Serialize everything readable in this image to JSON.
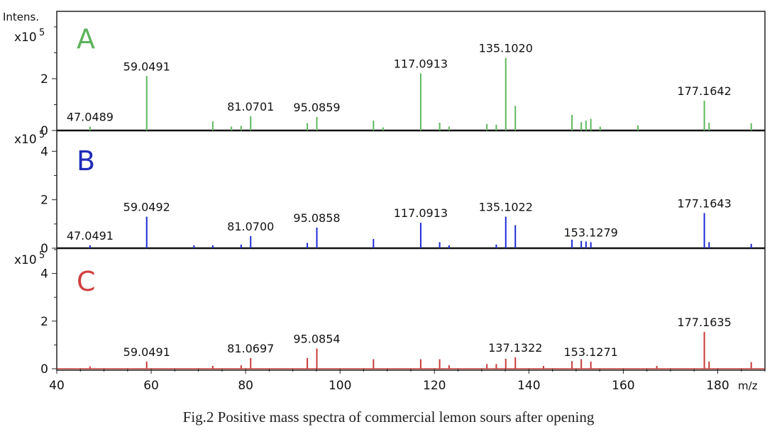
{
  "caption": "Fig.2 Positive mass spectra of commercial lemon sours after opening",
  "y_axis_label": "Intens.",
  "x_axis_unit": "m/z",
  "chart_data": [
    {
      "type": "line",
      "panel": "A",
      "color": "#5cb85c",
      "label_color": "#5db35d",
      "scale_label": "x10",
      "scale_exponent": "5",
      "xlim": [
        40,
        190
      ],
      "ylim": [
        0,
        4.6
      ],
      "yticks": [
        "0",
        "2"
      ],
      "peaks": [
        {
          "mz": 47.0489,
          "intensity": 0.15,
          "label": "47.0489"
        },
        {
          "mz": 59.0491,
          "intensity": 2.1,
          "label": "59.0491"
        },
        {
          "mz": 73.05,
          "intensity": 0.35
        },
        {
          "mz": 77.0,
          "intensity": 0.15
        },
        {
          "mz": 79.05,
          "intensity": 0.18
        },
        {
          "mz": 81.0701,
          "intensity": 0.55,
          "label": "81.0701"
        },
        {
          "mz": 93.07,
          "intensity": 0.28
        },
        {
          "mz": 95.0859,
          "intensity": 0.52,
          "label": "95.0859"
        },
        {
          "mz": 107.08,
          "intensity": 0.38
        },
        {
          "mz": 109.1,
          "intensity": 0.12
        },
        {
          "mz": 117.0913,
          "intensity": 2.2,
          "label": "117.0913"
        },
        {
          "mz": 121.1,
          "intensity": 0.3
        },
        {
          "mz": 123.1,
          "intensity": 0.15
        },
        {
          "mz": 131.1,
          "intensity": 0.25
        },
        {
          "mz": 133.1,
          "intensity": 0.22
        },
        {
          "mz": 135.102,
          "intensity": 2.8,
          "label": "135.1020"
        },
        {
          "mz": 137.13,
          "intensity": 0.95
        },
        {
          "mz": 149.13,
          "intensity": 0.6
        },
        {
          "mz": 151.1,
          "intensity": 0.32
        },
        {
          "mz": 152.1,
          "intensity": 0.38
        },
        {
          "mz": 153.12,
          "intensity": 0.45
        },
        {
          "mz": 155.1,
          "intensity": 0.15
        },
        {
          "mz": 163.1,
          "intensity": 0.2
        },
        {
          "mz": 177.1642,
          "intensity": 1.15,
          "label": "177.1642"
        },
        {
          "mz": 178.17,
          "intensity": 0.3
        },
        {
          "mz": 187.1,
          "intensity": 0.28
        }
      ]
    },
    {
      "type": "line",
      "panel": "B",
      "color": "#1f2ad6",
      "label_color": "#1f2ab8",
      "scale_label": "x10",
      "scale_exponent": "5",
      "xlim": [
        40,
        190
      ],
      "ylim": [
        0,
        4.8
      ],
      "yticks": [
        "0",
        "2",
        "4"
      ],
      "peaks": [
        {
          "mz": 47.0491,
          "intensity": 0.12,
          "label": "47.0491"
        },
        {
          "mz": 59.0492,
          "intensity": 1.3,
          "label": "59.0492"
        },
        {
          "mz": 69.07,
          "intensity": 0.12
        },
        {
          "mz": 73.05,
          "intensity": 0.12
        },
        {
          "mz": 79.05,
          "intensity": 0.15
        },
        {
          "mz": 81.07,
          "intensity": 0.5,
          "label": "81.0700"
        },
        {
          "mz": 93.07,
          "intensity": 0.22
        },
        {
          "mz": 95.0858,
          "intensity": 0.85,
          "label": "95.0858"
        },
        {
          "mz": 107.08,
          "intensity": 0.38
        },
        {
          "mz": 117.0913,
          "intensity": 1.05,
          "label": "117.0913"
        },
        {
          "mz": 121.1,
          "intensity": 0.25
        },
        {
          "mz": 123.1,
          "intensity": 0.12
        },
        {
          "mz": 133.1,
          "intensity": 0.15
        },
        {
          "mz": 135.1022,
          "intensity": 1.3,
          "label": "135.1022"
        },
        {
          "mz": 137.13,
          "intensity": 0.95
        },
        {
          "mz": 149.13,
          "intensity": 0.35
        },
        {
          "mz": 151.1,
          "intensity": 0.3
        },
        {
          "mz": 152.1,
          "intensity": 0.28
        },
        {
          "mz": 153.1279,
          "intensity": 0.25,
          "label": "153.1279"
        },
        {
          "mz": 177.1643,
          "intensity": 1.45,
          "label": "177.1643"
        },
        {
          "mz": 178.17,
          "intensity": 0.25
        },
        {
          "mz": 187.1,
          "intensity": 0.18
        }
      ]
    },
    {
      "type": "line",
      "panel": "C",
      "color": "#c83b3b",
      "label_color": "#d23f3f",
      "scale_label": "x10",
      "scale_exponent": "5",
      "xlim": [
        40,
        190
      ],
      "ylim": [
        0,
        5.0
      ],
      "yticks": [
        "0",
        "2",
        "4"
      ],
      "xticks": [
        "40",
        "60",
        "80",
        "100",
        "120",
        "140",
        "160",
        "180"
      ],
      "peaks": [
        {
          "mz": 47.05,
          "intensity": 0.1
        },
        {
          "mz": 59.0491,
          "intensity": 0.3,
          "label": "59.0491"
        },
        {
          "mz": 73.05,
          "intensity": 0.12
        },
        {
          "mz": 79.05,
          "intensity": 0.15
        },
        {
          "mz": 81.0697,
          "intensity": 0.45,
          "label": "81.0697"
        },
        {
          "mz": 93.07,
          "intensity": 0.45
        },
        {
          "mz": 95.0854,
          "intensity": 0.85,
          "label": "95.0854"
        },
        {
          "mz": 107.08,
          "intensity": 0.4
        },
        {
          "mz": 117.09,
          "intensity": 0.4
        },
        {
          "mz": 121.1,
          "intensity": 0.4
        },
        {
          "mz": 123.1,
          "intensity": 0.15
        },
        {
          "mz": 131.1,
          "intensity": 0.2
        },
        {
          "mz": 133.1,
          "intensity": 0.2
        },
        {
          "mz": 135.1,
          "intensity": 0.42
        },
        {
          "mz": 137.1322,
          "intensity": 0.48,
          "label": "137.1322"
        },
        {
          "mz": 143.1,
          "intensity": 0.12
        },
        {
          "mz": 149.13,
          "intensity": 0.32
        },
        {
          "mz": 151.1,
          "intensity": 0.4
        },
        {
          "mz": 153.1271,
          "intensity": 0.3,
          "label": "153.1271"
        },
        {
          "mz": 167.1,
          "intensity": 0.12
        },
        {
          "mz": 177.1635,
          "intensity": 1.55,
          "label": "177.1635"
        },
        {
          "mz": 178.17,
          "intensity": 0.3
        },
        {
          "mz": 187.1,
          "intensity": 0.28
        }
      ]
    }
  ]
}
